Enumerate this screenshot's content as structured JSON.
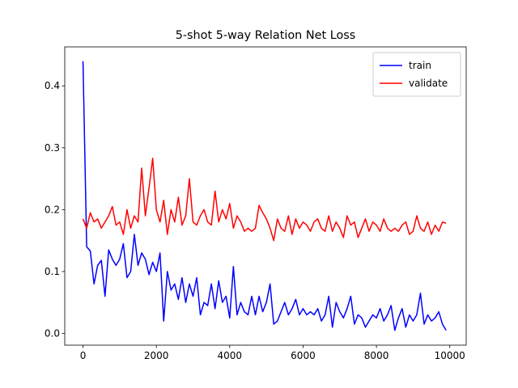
{
  "chart_data": {
    "type": "line",
    "title": "5-shot 5-way Relation Net Loss",
    "x": [
      0,
      100,
      200,
      300,
      400,
      500,
      600,
      700,
      800,
      900,
      1000,
      1100,
      1200,
      1300,
      1400,
      1500,
      1600,
      1700,
      1800,
      1900,
      2000,
      2100,
      2200,
      2300,
      2400,
      2500,
      2600,
      2700,
      2800,
      2900,
      3000,
      3100,
      3200,
      3300,
      3400,
      3500,
      3600,
      3700,
      3800,
      3900,
      4000,
      4100,
      4200,
      4300,
      4400,
      4500,
      4600,
      4700,
      4800,
      4900,
      5000,
      5100,
      5200,
      5300,
      5400,
      5500,
      5600,
      5700,
      5800,
      5900,
      6000,
      6100,
      6200,
      6300,
      6400,
      6500,
      6600,
      6700,
      6800,
      6900,
      7000,
      7100,
      7200,
      7300,
      7400,
      7500,
      7600,
      7700,
      7800,
      7900,
      8000,
      8100,
      8200,
      8300,
      8400,
      8500,
      8600,
      8700,
      8800,
      8900,
      9000,
      9100,
      9200,
      9300,
      9400,
      9500,
      9600,
      9700,
      9800,
      9900
    ],
    "series": [
      {
        "name": "train",
        "color": "#0000ff",
        "values": [
          0.44,
          0.14,
          0.133,
          0.08,
          0.11,
          0.118,
          0.06,
          0.135,
          0.12,
          0.11,
          0.12,
          0.145,
          0.09,
          0.1,
          0.16,
          0.11,
          0.13,
          0.12,
          0.095,
          0.115,
          0.1,
          0.13,
          0.02,
          0.1,
          0.07,
          0.08,
          0.055,
          0.09,
          0.05,
          0.08,
          0.06,
          0.09,
          0.03,
          0.05,
          0.045,
          0.08,
          0.04,
          0.085,
          0.05,
          0.06,
          0.025,
          0.108,
          0.03,
          0.05,
          0.035,
          0.03,
          0.06,
          0.03,
          0.06,
          0.035,
          0.05,
          0.08,
          0.015,
          0.02,
          0.035,
          0.05,
          0.03,
          0.04,
          0.055,
          0.03,
          0.04,
          0.03,
          0.035,
          0.03,
          0.04,
          0.02,
          0.03,
          0.06,
          0.01,
          0.05,
          0.035,
          0.025,
          0.04,
          0.06,
          0.015,
          0.03,
          0.025,
          0.01,
          0.02,
          0.03,
          0.025,
          0.04,
          0.02,
          0.03,
          0.045,
          0.005,
          0.025,
          0.04,
          0.01,
          0.03,
          0.02,
          0.03,
          0.065,
          0.015,
          0.03,
          0.02,
          0.025,
          0.035,
          0.015,
          0.005
        ]
      },
      {
        "name": "validate",
        "color": "#ff0000",
        "values": [
          0.185,
          0.17,
          0.195,
          0.18,
          0.185,
          0.17,
          0.18,
          0.19,
          0.205,
          0.175,
          0.18,
          0.16,
          0.2,
          0.17,
          0.19,
          0.18,
          0.267,
          0.19,
          0.235,
          0.283,
          0.2,
          0.18,
          0.215,
          0.16,
          0.2,
          0.18,
          0.22,
          0.175,
          0.19,
          0.25,
          0.18,
          0.175,
          0.19,
          0.2,
          0.18,
          0.175,
          0.23,
          0.18,
          0.2,
          0.185,
          0.21,
          0.17,
          0.19,
          0.18,
          0.165,
          0.17,
          0.165,
          0.17,
          0.207,
          0.195,
          0.185,
          0.17,
          0.15,
          0.185,
          0.17,
          0.165,
          0.19,
          0.16,
          0.185,
          0.17,
          0.18,
          0.175,
          0.165,
          0.18,
          0.185,
          0.17,
          0.165,
          0.19,
          0.165,
          0.18,
          0.17,
          0.155,
          0.19,
          0.175,
          0.18,
          0.155,
          0.17,
          0.185,
          0.165,
          0.18,
          0.175,
          0.165,
          0.185,
          0.17,
          0.165,
          0.17,
          0.165,
          0.175,
          0.18,
          0.16,
          0.165,
          0.19,
          0.17,
          0.165,
          0.18,
          0.16,
          0.175,
          0.165,
          0.18,
          0.178
        ]
      }
    ],
    "xlim": [
      -497.5,
      10447.5
    ],
    "ylim": [
      -0.019,
      0.463
    ],
    "xticks": [
      0,
      2000,
      4000,
      6000,
      8000,
      10000
    ],
    "yticks": [
      {
        "value": 0,
        "label": "0.0"
      },
      0.1,
      0.2,
      0.3,
      0.4
    ],
    "legend": "upper right"
  }
}
